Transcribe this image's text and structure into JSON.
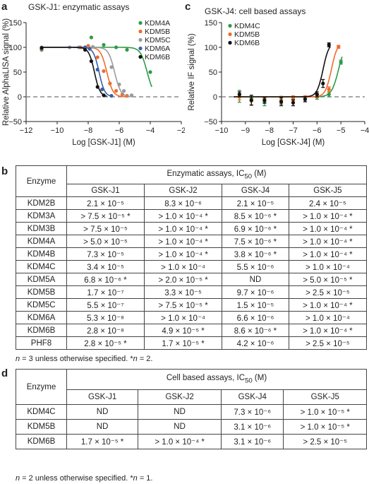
{
  "panels": {
    "a": "a",
    "b": "b",
    "c": "c",
    "d": "d"
  },
  "chart_data": [
    {
      "type": "scatter",
      "title": "GSK-J1: enzymatic assays",
      "xlabel": "Log [GSK-J1] (M)",
      "ylabel": "Relative AlphaLISA signal (%)",
      "xlim": [
        -12,
        -2
      ],
      "ylim": [
        -50,
        150
      ],
      "xticks": [
        -12,
        -10,
        -8,
        -6,
        -4,
        -2
      ],
      "yticks": [
        -50,
        0,
        50,
        100,
        150
      ],
      "xtick_labels": [
        "−12",
        "−10",
        "−8",
        "−6",
        "−4",
        "−2"
      ],
      "ytick_labels": [
        "−50",
        "0",
        "50",
        "100",
        "150"
      ],
      "zero_line": true,
      "legend": "top-right",
      "series": [
        {
          "name": "KDM4A",
          "color": "#2e9a47",
          "logIC50": -4.2,
          "hill": 2.0,
          "x": [
            -11,
            -7.8,
            -7,
            -6.2,
            -5.5,
            -4
          ],
          "y": [
            95,
            120,
            105,
            100,
            95,
            50
          ],
          "curve_x": [
            -11,
            -3.9
          ]
        },
        {
          "name": "KDM5B",
          "color": "#ef6c2b",
          "logIC50": -6.8,
          "hill": 2.2,
          "x": [
            -11,
            -8.5,
            -8,
            -7.4,
            -7,
            -6.6,
            -6.2,
            -5.8,
            -5.5
          ],
          "y": [
            97,
            100,
            103,
            80,
            52,
            27,
            12,
            5,
            2
          ],
          "curve_x": [
            -11,
            -5.5
          ]
        },
        {
          "name": "KDM5C",
          "color": "#9b9b9b",
          "logIC50": -6.3,
          "hill": 2.2,
          "x": [
            -11,
            -9.2,
            -8.6,
            -7.7,
            -6.5,
            -6,
            -5.7,
            -5.2
          ],
          "y": [
            100,
            100,
            100,
            101,
            60,
            25,
            12,
            3
          ],
          "curve_x": [
            -11,
            -5
          ]
        },
        {
          "name": "KDM6A",
          "color": "#3c5fa8",
          "logIC50": -7.3,
          "hill": 2.4,
          "x": [
            -11,
            -8.2,
            -7.9,
            -7.4,
            -7.1,
            -6.5
          ],
          "y": [
            98,
            100,
            97,
            55,
            15,
            2
          ],
          "curve_x": [
            -11,
            -6.4
          ]
        },
        {
          "name": "KDM6B",
          "color": "#111111",
          "logIC50": -7.6,
          "hill": 2.4,
          "x": [
            -11,
            -8.2,
            -7.8,
            -7.4,
            -7
          ],
          "y": [
            99,
            95,
            72,
            20,
            3
          ],
          "curve_x": [
            -11,
            -6.8
          ]
        }
      ]
    },
    {
      "type": "scatter",
      "title": "GSK-J4: cell based assays",
      "xlabel": "Log [GSK-J4] (M)",
      "ylabel": "Relative IF signal (%)",
      "xlim": [
        -10,
        -4
      ],
      "ylim": [
        -50,
        150
      ],
      "xticks": [
        -10,
        -9,
        -8,
        -7,
        -6,
        -5,
        -4
      ],
      "yticks": [
        -50,
        0,
        50,
        100,
        150
      ],
      "xtick_labels": [
        "−10",
        "−9",
        "−8",
        "−7",
        "−6",
        "−5",
        "−4"
      ],
      "ytick_labels": [
        "−50",
        "0",
        "50",
        "100",
        "150"
      ],
      "zero_line": true,
      "legend": "top-left",
      "series": [
        {
          "name": "KDM4C",
          "color": "#2e9a47",
          "logEC50": -5.1,
          "hill": 3.0,
          "x": [
            -9.25,
            -8.75,
            -8.2,
            -7.5,
            -7,
            -6.5,
            -6,
            -5.5,
            -5
          ],
          "y": [
            1,
            -3,
            -10,
            -7,
            -6,
            -4,
            0,
            5,
            70
          ],
          "err": [
            12,
            6,
            8,
            8,
            6,
            6,
            5,
            5,
            4
          ],
          "curve_x": [
            -9.5,
            -4.95
          ]
        },
        {
          "name": "KDM5B",
          "color": "#ef6c2b",
          "logEC50": -5.4,
          "hill": 3.5,
          "x": [
            -9.25,
            -8.75,
            -8.2,
            -7.5,
            -7,
            -6.5,
            -6,
            -5.5,
            -5.1
          ],
          "y": [
            0,
            -8,
            -4,
            -7,
            -3,
            -2,
            2,
            15,
            101
          ],
          "err": [
            6,
            8,
            4,
            6,
            5,
            4,
            4,
            5,
            3
          ],
          "curve_x": [
            -9.5,
            -5.05
          ]
        },
        {
          "name": "KDM6B",
          "color": "#111111",
          "logEC50": -5.75,
          "hill": 3.5,
          "x": [
            -9.25,
            -8.75,
            -8.2,
            -7.5,
            -7,
            -6.5,
            -6,
            -5.75,
            -5.5
          ],
          "y": [
            5,
            -7,
            -7,
            -10,
            -12,
            -5,
            5,
            27,
            105
          ],
          "err": [
            5,
            10,
            6,
            8,
            6,
            5,
            5,
            8,
            4
          ],
          "curve_x": [
            -9.5,
            -5.45
          ]
        }
      ]
    },
    {
      "type": "table",
      "header_col": "Enzyme",
      "group_header": "Enzymatic assays,  IC",
      "group_sub": "50",
      "group_unit": " (M)",
      "columns": [
        "GSK-J1",
        "GSK-J2",
        "GSK-J4",
        "GSK-J5"
      ],
      "rows": [
        {
          "enzyme": "KDM2B",
          "cells": [
            "2.1 × 10⁻⁵",
            "8.3 × 10⁻⁶",
            "2.1 × 10⁻⁵",
            "2.4 × 10⁻⁵"
          ]
        },
        {
          "enzyme": "KDM3A",
          "cells": [
            "> 7.5 × 10⁻⁵ *",
            "> 1.0 × 10⁻⁴ *",
            "8.5 × 10⁻⁶ *",
            "> 1.0 × 10⁻⁴ *"
          ]
        },
        {
          "enzyme": "KDM3B",
          "cells": [
            "> 7.5 × 10⁻⁵",
            "> 1.0 × 10⁻⁴ *",
            "6.9 × 10⁻⁶ *",
            "> 1.0 × 10⁻⁴ *"
          ]
        },
        {
          "enzyme": "KDM4A",
          "cells": [
            "> 5.0 × 10⁻⁵",
            "> 1.0 × 10⁻⁴ *",
            "7.5 × 10⁻⁶ *",
            "> 1.0 × 10⁻⁴ *"
          ]
        },
        {
          "enzyme": "KDM4B",
          "cells": [
            "7.3 × 10⁻⁵",
            "> 1.0 × 10⁻⁴ *",
            "3.8 × 10⁻⁶ *",
            "> 1.0 × 10⁻⁴ *"
          ]
        },
        {
          "enzyme": "KDM4C",
          "cells": [
            "3.4 × 10⁻⁵",
            "> 1.0 × 10⁻⁴",
            "5.5 × 10⁻⁶",
            "> 1.0 × 10⁻⁴"
          ]
        },
        {
          "enzyme": "KDM5A",
          "cells": [
            "6.8 × 10⁻⁶ *",
            "> 2.0 × 10⁻⁵ *",
            "ND",
            "> 5.0 × 10⁻⁵ *"
          ]
        },
        {
          "enzyme": "KDM5B",
          "cells": [
            "1.7 × 10⁻⁷",
            "3.3 × 10⁻⁵",
            "9.7 × 10⁻⁶",
            "> 2.5 × 10⁻⁵"
          ]
        },
        {
          "enzyme": "KDM5C",
          "cells": [
            "5.5 × 10⁻⁷",
            "> 7.5 × 10⁻⁵ *",
            "1.5 × 10⁻⁵",
            "> 1.0 × 10⁻⁴ *"
          ]
        },
        {
          "enzyme": "KDM6A",
          "cells": [
            "5.3 × 10⁻⁸",
            "> 1.0 × 10⁻⁴",
            "6.6 × 10⁻⁶",
            "> 1.0 × 10⁻⁴"
          ]
        },
        {
          "enzyme": "KDM6B",
          "cells": [
            "2.8 × 10⁻⁸",
            "4.9 × 10⁻⁵ *",
            "8.6 × 10⁻⁶ *",
            "> 1.0 × 10⁻⁴ *"
          ]
        },
        {
          "enzyme": "PHF8",
          "cells": [
            "2.8 × 10⁻⁵ *",
            "1.7 × 10⁻⁵ *",
            "4.2 × 10⁻⁶",
            "> 2.5 × 10⁻⁵"
          ]
        }
      ],
      "note_n": "n",
      "note_rest": " = 3 unless otherwise specified. *",
      "note_n2": "n",
      "note_end": " = 2."
    },
    {
      "type": "table",
      "header_col": "Enzyme",
      "group_header": "Cell based assays,  IC",
      "group_sub": "50",
      "group_unit": " (M)",
      "columns": [
        "GSK-J1",
        "GSK-J2",
        "GSK-J4",
        "GSK-J5"
      ],
      "rows": [
        {
          "enzyme": "KDM4C",
          "cells": [
            "ND",
            "ND",
            "7.3 × 10⁻⁶",
            "> 1.0 × 10⁻⁵ *"
          ]
        },
        {
          "enzyme": "KDM5B",
          "cells": [
            "ND",
            "ND",
            "3.1 × 10⁻⁶",
            "> 1.0 × 10⁻⁵ *"
          ]
        },
        {
          "enzyme": "KDM6B",
          "cells": [
            "1.7 × 10⁻⁵ *",
            "> 1.0 × 10⁻⁴ *",
            "3.1 × 10⁻⁶",
            "> 2.5 × 10⁻⁵"
          ]
        }
      ],
      "note_n": "n",
      "note_rest": " = 2 unless otherwise specified. *",
      "note_n2": "n",
      "note_end": " = 1."
    }
  ]
}
